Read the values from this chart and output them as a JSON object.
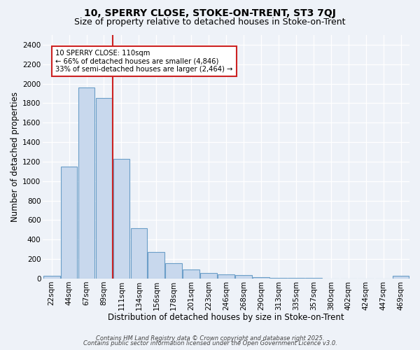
{
  "title1": "10, SPERRY CLOSE, STOKE-ON-TRENT, ST3 7QJ",
  "title2": "Size of property relative to detached houses in Stoke-on-Trent",
  "xlabel": "Distribution of detached houses by size in Stoke-on-Trent",
  "ylabel": "Number of detached properties",
  "bar_labels": [
    "22sqm",
    "44sqm",
    "67sqm",
    "89sqm",
    "111sqm",
    "134sqm",
    "156sqm",
    "178sqm",
    "201sqm",
    "223sqm",
    "246sqm",
    "268sqm",
    "290sqm",
    "313sqm",
    "335sqm",
    "357sqm",
    "380sqm",
    "402sqm",
    "424sqm",
    "447sqm",
    "469sqm"
  ],
  "bar_values": [
    25,
    1150,
    1960,
    1850,
    1230,
    520,
    270,
    155,
    90,
    55,
    45,
    35,
    15,
    8,
    5,
    4,
    3,
    3,
    2,
    2,
    25
  ],
  "bar_color": "#c8d8ed",
  "bar_edge_color": "#6b9ec8",
  "vline_index": 4,
  "annotation_text": "10 SPERRY CLOSE: 110sqm\n← 66% of detached houses are smaller (4,846)\n33% of semi-detached houses are larger (2,464) →",
  "annotation_box_color": "#ffffff",
  "annotation_box_edge_color": "#cc2222",
  "vline_color": "#cc2222",
  "ylim": [
    0,
    2500
  ],
  "yticks": [
    0,
    200,
    400,
    600,
    800,
    1000,
    1200,
    1400,
    1600,
    1800,
    2000,
    2200,
    2400
  ],
  "footer1": "Contains HM Land Registry data © Crown copyright and database right 2025.",
  "footer2": "Contains public sector information licensed under the Open Government Licence v3.0.",
  "background_color": "#eef2f8",
  "grid_color": "#ffffff",
  "title_fontsize": 10,
  "subtitle_fontsize": 9,
  "axis_label_fontsize": 8.5,
  "tick_fontsize": 7.5,
  "footer_fontsize": 6.0
}
